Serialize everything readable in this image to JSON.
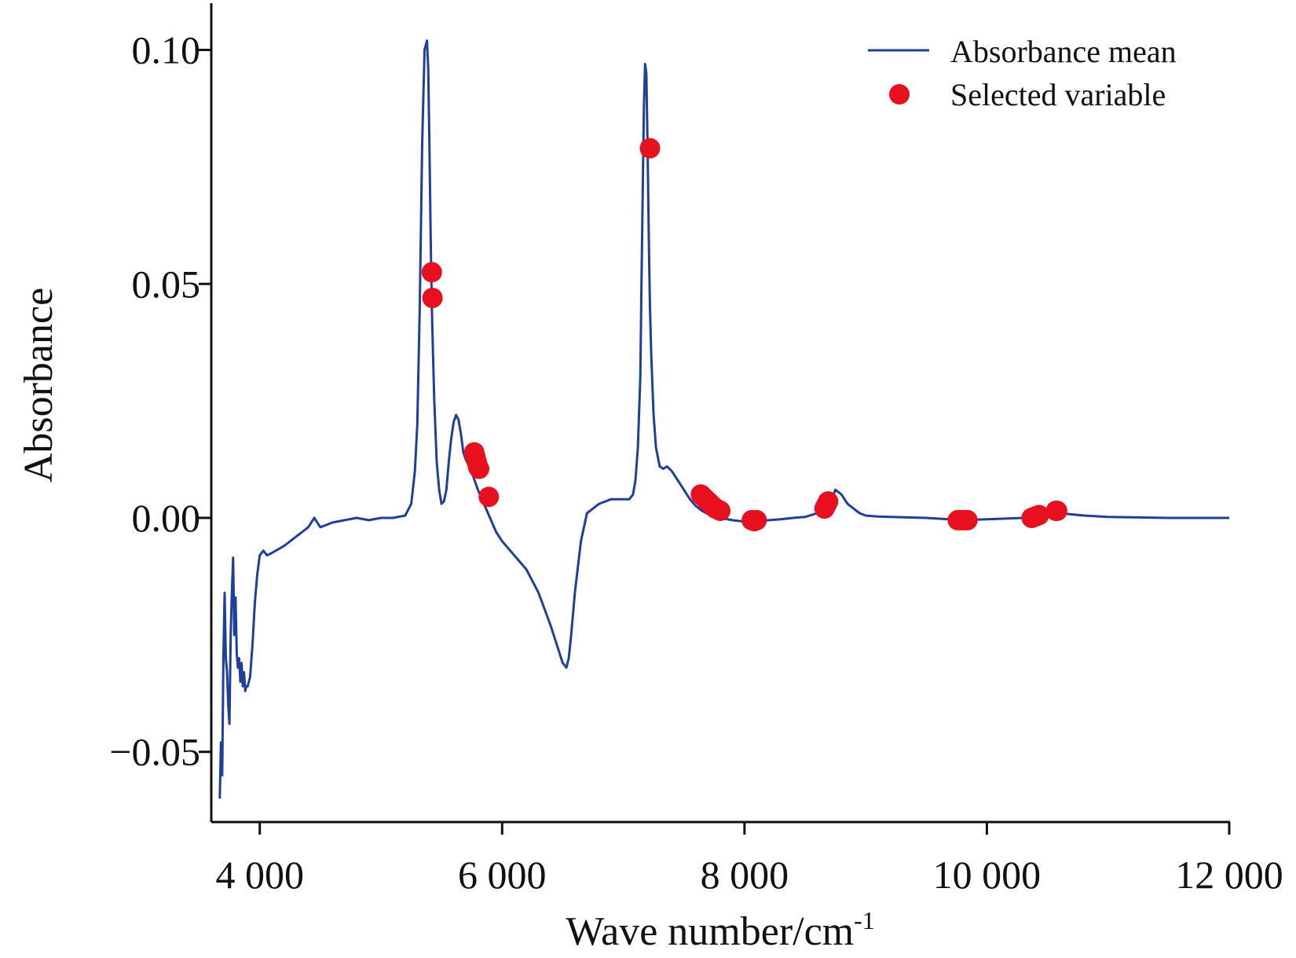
{
  "chart_data": {
    "type": "line",
    "title": "",
    "xlabel": "Wave number/cm",
    "xlabel_sup": "-1",
    "ylabel": "Absorbance",
    "xlim": [
      3600,
      12000
    ],
    "ylim": [
      -0.065,
      0.11
    ],
    "x_ticks": [
      4000,
      6000,
      8000,
      10000,
      12000
    ],
    "x_tick_labels": [
      "4 000",
      "6 000",
      "8 000",
      "10 000",
      "12 000"
    ],
    "y_ticks": [
      -0.05,
      0,
      0.05,
      0.1
    ],
    "y_tick_labels": [
      "−0.05",
      "0.00",
      "0.05",
      "0.10"
    ],
    "grid": false,
    "legend_position": "top-right",
    "series": [
      {
        "name": "Absorbance mean",
        "kind": "line",
        "color": "#1f3f9c",
        "x": [
          3670,
          3680,
          3690,
          3700,
          3710,
          3720,
          3730,
          3740,
          3750,
          3760,
          3770,
          3780,
          3790,
          3800,
          3810,
          3820,
          3830,
          3840,
          3850,
          3860,
          3870,
          3880,
          3890,
          3900,
          3920,
          3940,
          3960,
          3980,
          4000,
          4030,
          4060,
          4100,
          4200,
          4300,
          4400,
          4450,
          4500,
          4600,
          4700,
          4800,
          4900,
          5000,
          5100,
          5200,
          5250,
          5280,
          5300,
          5320,
          5340,
          5360,
          5380,
          5390,
          5400,
          5410,
          5420,
          5430,
          5440,
          5460,
          5480,
          5500,
          5520,
          5540,
          5560,
          5580,
          5600,
          5620,
          5640,
          5660,
          5680,
          5700,
          5720,
          5740,
          5760,
          5780,
          5800,
          5850,
          5900,
          5950,
          6000,
          6050,
          6100,
          6200,
          6300,
          6400,
          6450,
          6500,
          6530,
          6550,
          6570,
          6600,
          6650,
          6700,
          6750,
          6800,
          6900,
          7000,
          7050,
          7080,
          7100,
          7120,
          7140,
          7150,
          7160,
          7170,
          7180,
          7190,
          7200,
          7210,
          7220,
          7230,
          7250,
          7270,
          7300,
          7330,
          7360,
          7400,
          7450,
          7500,
          7550,
          7600,
          7650,
          7700,
          7750,
          7800,
          7900,
          8000,
          8100,
          8200,
          8300,
          8400,
          8500,
          8600,
          8650,
          8700,
          8750,
          8800,
          8850,
          8900,
          8950,
          9000,
          9100,
          9500,
          9800,
          10000,
          10300,
          10500,
          10600,
          10800,
          11000,
          11500,
          11700,
          12000
        ],
        "y": [
          -0.06,
          -0.048,
          -0.055,
          -0.03,
          -0.016,
          -0.03,
          -0.033,
          -0.04,
          -0.044,
          -0.025,
          -0.016,
          -0.0085,
          -0.025,
          -0.017,
          -0.029,
          -0.032,
          -0.03,
          -0.035,
          -0.031,
          -0.036,
          -0.033,
          -0.037,
          -0.036,
          -0.036,
          -0.034,
          -0.027,
          -0.018,
          -0.012,
          -0.008,
          -0.007,
          -0.008,
          -0.0075,
          -0.006,
          -0.004,
          -0.002,
          0.0,
          -0.002,
          -0.001,
          -0.0005,
          0.0,
          -0.0005,
          0.0,
          0.0,
          0.0005,
          0.003,
          0.01,
          0.02,
          0.045,
          0.08,
          0.1,
          0.102,
          0.096,
          0.08,
          0.06,
          0.045,
          0.035,
          0.025,
          0.012,
          0.006,
          0.003,
          0.0035,
          0.006,
          0.012,
          0.017,
          0.0205,
          0.022,
          0.021,
          0.018,
          0.014,
          0.0125,
          0.0115,
          0.0105,
          0.009,
          0.0075,
          0.006,
          0.003,
          0.0,
          -0.003,
          -0.005,
          -0.0065,
          -0.008,
          -0.011,
          -0.016,
          -0.023,
          -0.027,
          -0.031,
          -0.032,
          -0.03,
          -0.025,
          -0.016,
          -0.005,
          0.001,
          0.002,
          0.003,
          0.004,
          0.004,
          0.004,
          0.005,
          0.008,
          0.015,
          0.03,
          0.05,
          0.07,
          0.088,
          0.097,
          0.095,
          0.08,
          0.06,
          0.045,
          0.035,
          0.022,
          0.015,
          0.011,
          0.0105,
          0.011,
          0.01,
          0.008,
          0.006,
          0.004,
          0.0025,
          0.0015,
          0.0008,
          0.0003,
          0.0,
          -0.0005,
          -0.0008,
          -0.0007,
          -0.0005,
          -0.0003,
          0.0,
          0.0002,
          0.001,
          0.0015,
          0.003,
          0.006,
          0.005,
          0.003,
          0.002,
          0.001,
          0.0005,
          0.0003,
          0.0,
          -0.0005,
          -0.0003,
          0.0,
          0.001,
          0.001,
          0.0005,
          0.0002,
          0.0,
          0.0,
          0.0
        ]
      },
      {
        "name": "Selected variable",
        "kind": "scatter",
        "color": "#e8101e",
        "x": [
          5420,
          5425,
          5770,
          5780,
          5790,
          5800,
          5810,
          5890,
          7220,
          7640,
          7660,
          7680,
          7700,
          7720,
          7740,
          7760,
          7780,
          7800,
          8060,
          8070,
          8080,
          8090,
          8100,
          8660,
          8670,
          8680,
          8690,
          9760,
          9780,
          9800,
          9820,
          9840,
          10370,
          10390,
          10410,
          10430,
          10570,
          10580
        ],
        "y": [
          0.0525,
          0.047,
          0.014,
          0.013,
          0.012,
          0.011,
          0.0105,
          0.0045,
          0.079,
          0.005,
          0.0045,
          0.004,
          0.0035,
          0.003,
          0.0025,
          0.002,
          0.0018,
          0.0015,
          -0.0005,
          -0.0006,
          -0.0007,
          -0.0006,
          -0.0005,
          0.002,
          0.0025,
          0.003,
          0.0035,
          -0.0005,
          -0.0005,
          -0.0005,
          -0.0005,
          -0.0005,
          0.0,
          0.0002,
          0.0004,
          0.0006,
          0.0015,
          0.0015
        ]
      }
    ]
  }
}
